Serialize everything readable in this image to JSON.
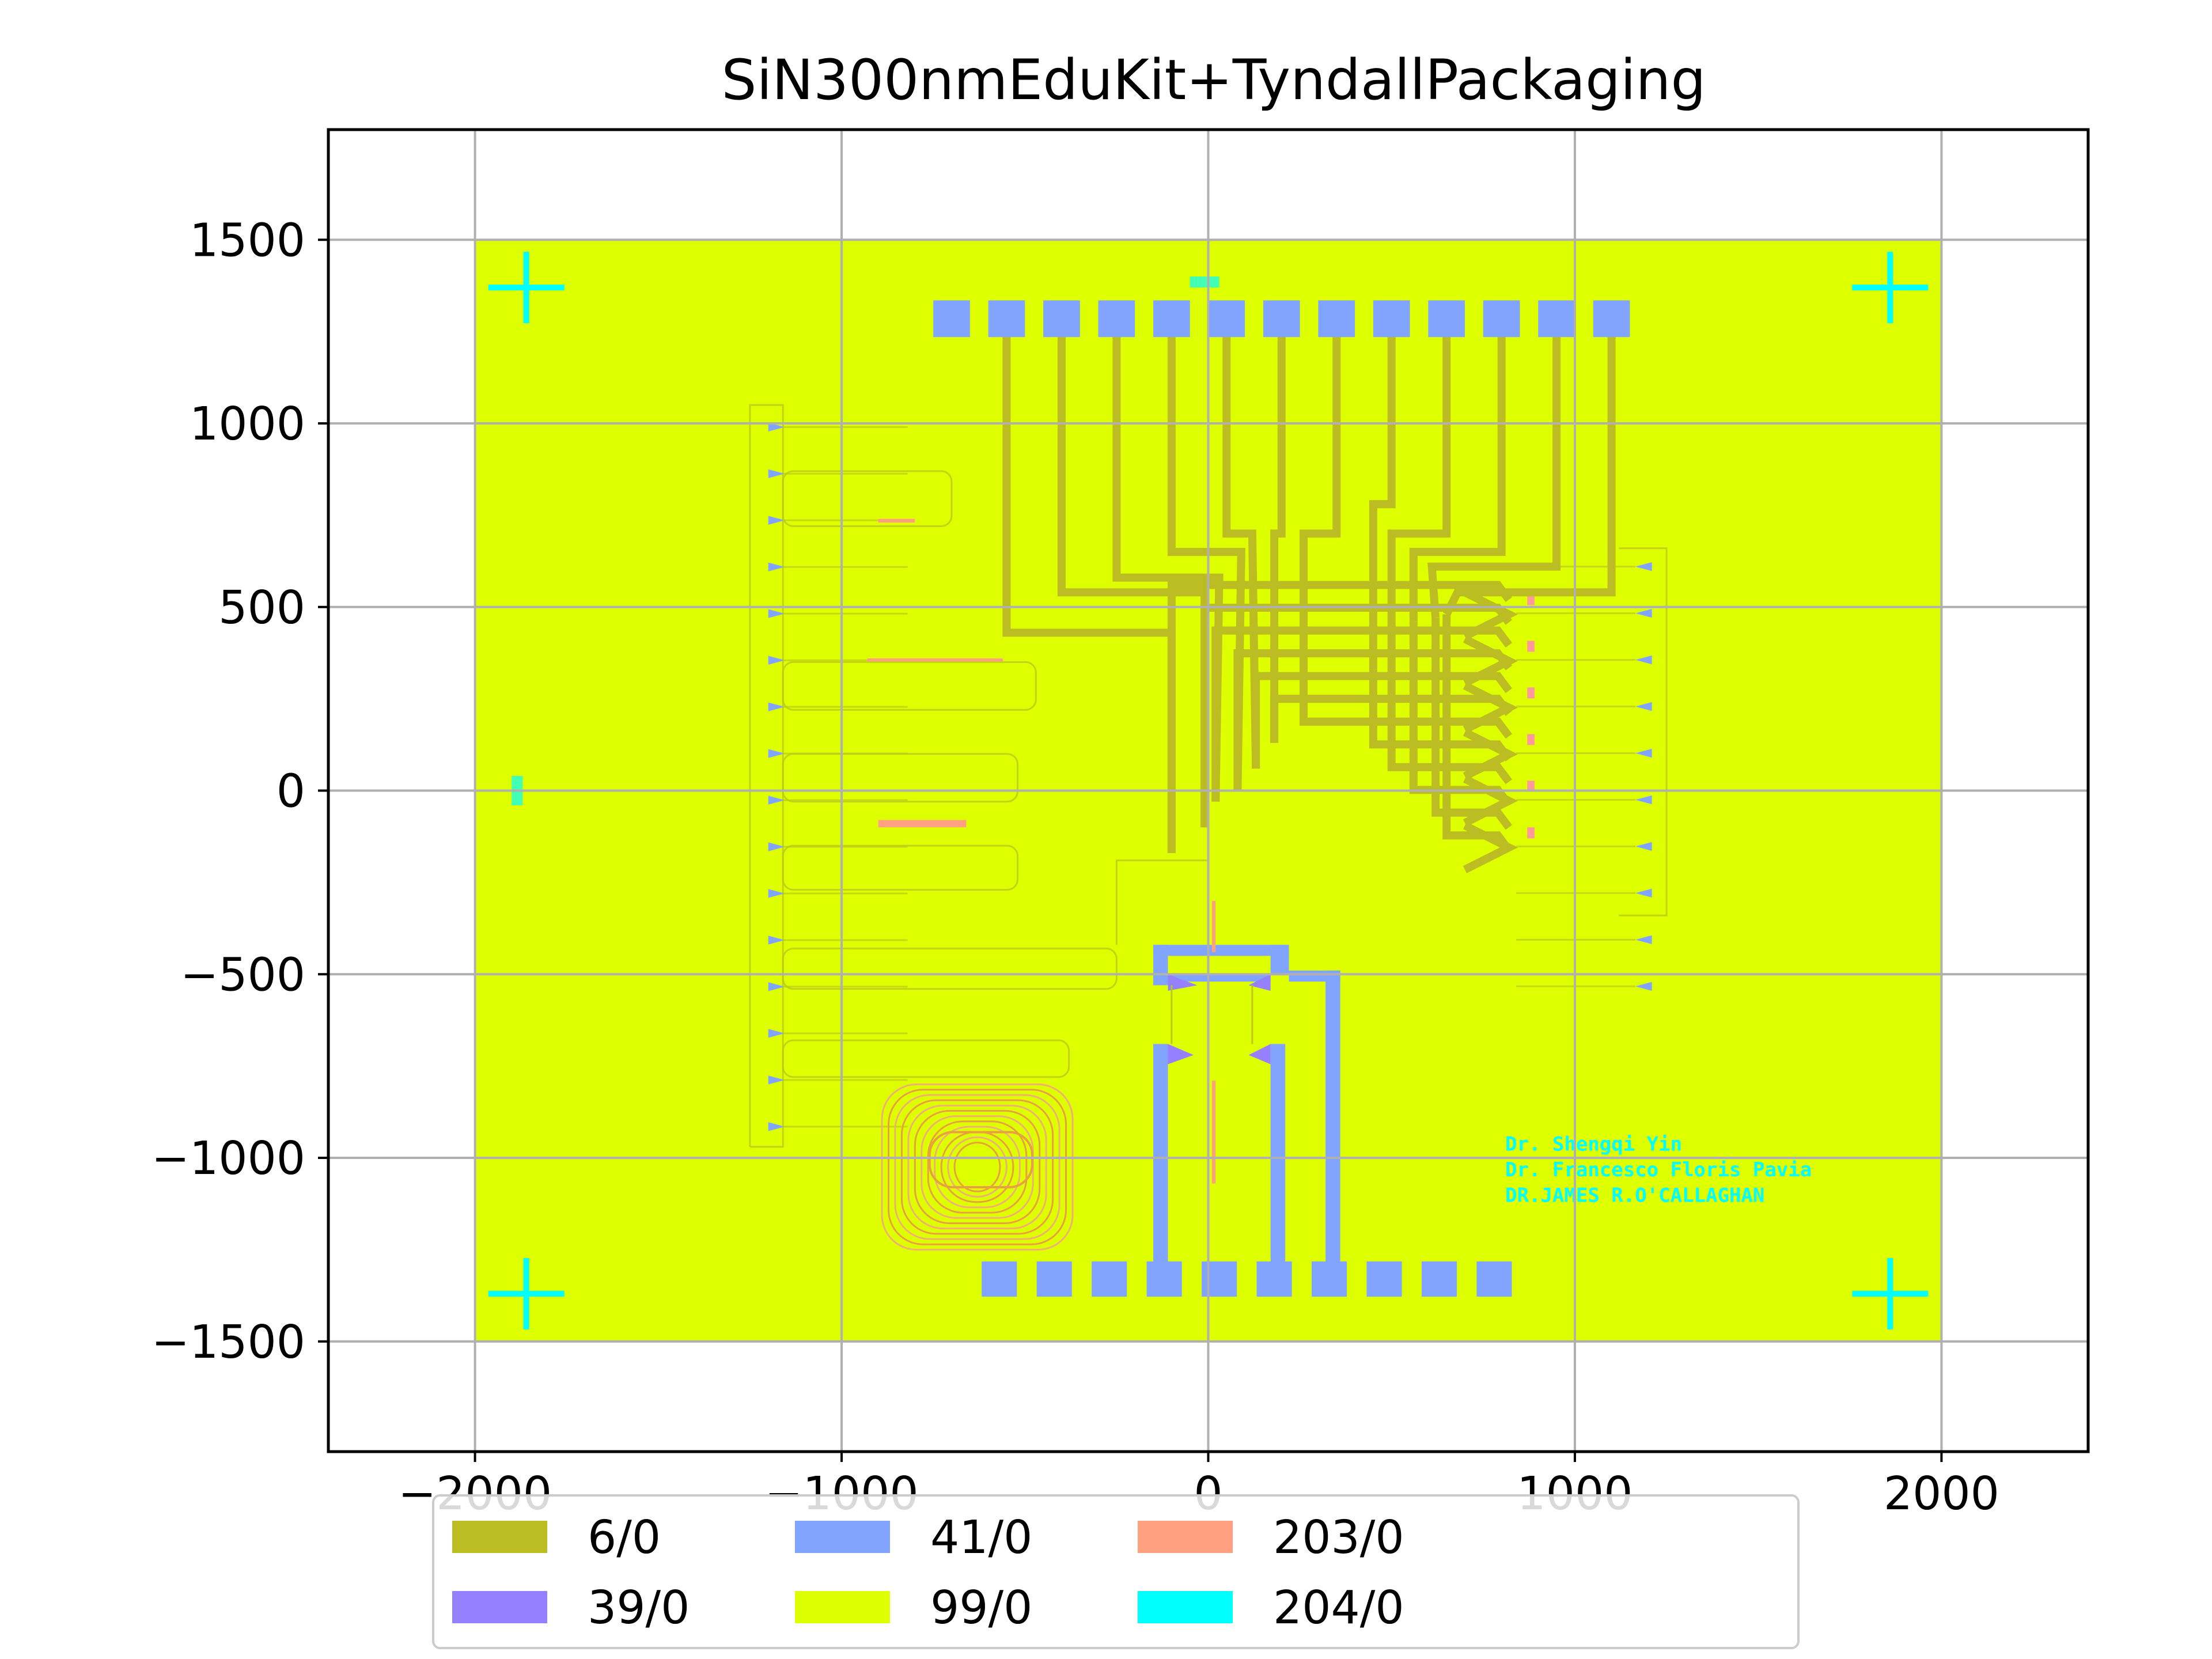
{
  "chart_data": {
    "type": "layout",
    "title": "SiN300nmEduKit+TyndallPackaging",
    "xlabel": "",
    "ylabel": "",
    "xlim": [
      -2400,
      2400
    ],
    "ylim": [
      -1800,
      1800
    ],
    "grid": true,
    "x_ticks": [
      -2000,
      -1000,
      0,
      1000,
      2000
    ],
    "x_tick_labels": [
      "−2000",
      "−1000",
      "0",
      "1000",
      "2000"
    ],
    "y_ticks": [
      1500,
      1000,
      500,
      0,
      -500,
      -1000,
      -1500
    ],
    "y_tick_labels": [
      "1500",
      "1000",
      "500",
      "0",
      "−500",
      "−1000",
      "−1500"
    ],
    "legend_position": "lower-center",
    "legend": [
      {
        "label": "6/0",
        "color": "#bcbd22"
      },
      {
        "label": "39/0",
        "color": "#9580ff"
      },
      {
        "label": "41/0",
        "color": "#80a4ff"
      },
      {
        "label": "99/0",
        "color": "#ddff00"
      },
      {
        "label": "203/0",
        "color": "#ffa080"
      },
      {
        "label": "204/0",
        "color": "#00ffff"
      }
    ],
    "chip_outline": {
      "x": [
        -2000,
        2000
      ],
      "y": [
        -1500,
        1500
      ],
      "layer": "99/0"
    },
    "top_pads": {
      "count": 13,
      "x_start": -700,
      "x_step": 150,
      "y": 1285,
      "layer": "41/0"
    },
    "bottom_pads": {
      "count": 10,
      "x_start": -570,
      "x_step": 150,
      "y": -1330,
      "layer": "41/0"
    },
    "alignment_marks": [
      [
        -1860,
        1370
      ],
      [
        1860,
        1370
      ],
      [
        -1860,
        -1370
      ],
      [
        1860,
        -1370
      ]
    ],
    "annotations": [
      "Dr. Shengqi Yin",
      "Dr. Francesco Floris Pavia",
      "DR.JAMES R.O'CALLAGHAN"
    ]
  }
}
